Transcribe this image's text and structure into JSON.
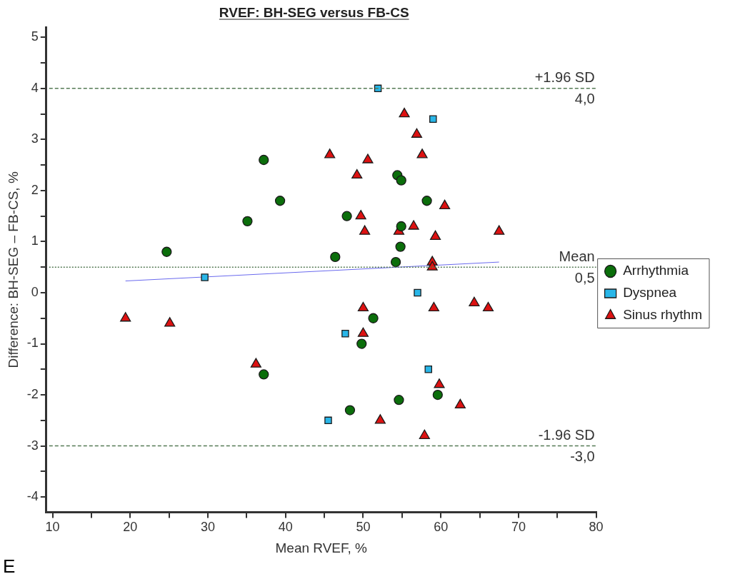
{
  "chart_data": {
    "type": "scatter",
    "title": "RVEF: BH-SEG versus FB-CS",
    "xlabel": "Mean RVEF, %",
    "ylabel": "Difference: BH-SEG – FB-CS, %",
    "xlim": [
      9.2,
      80
    ],
    "ylim": [
      -4.3,
      5.2
    ],
    "xticks": [
      10,
      {
        "value": 15,
        "label": null
      },
      20,
      {
        "value": 25,
        "label": null
      },
      30,
      {
        "value": 35,
        "label": null
      },
      40,
      {
        "value": 45,
        "label": null
      },
      50,
      {
        "value": 55,
        "label": null
      },
      60,
      {
        "value": 65,
        "label": null
      },
      70,
      {
        "value": 75,
        "label": null
      },
      80
    ],
    "yticks": [
      -4,
      {
        "value": -3.5,
        "label": null
      },
      -3,
      {
        "value": -2.5,
        "label": null
      },
      -2,
      {
        "value": -1.5,
        "label": null
      },
      -1,
      {
        "value": -0.5,
        "label": null
      },
      0,
      {
        "value": 0.5,
        "label": null
      },
      1,
      {
        "value": 1.5,
        "label": null
      },
      2,
      {
        "value": 2.5,
        "label": null
      },
      3,
      {
        "value": 3.5,
        "label": null
      },
      4,
      {
        "value": 4.5,
        "label": null
      },
      5
    ],
    "grid": false,
    "legend": "right",
    "series": [
      {
        "name": "Arrhythmia",
        "color": "#0b6e0b",
        "marker": "circle",
        "x": [
          24.7,
          37.2,
          39.3,
          35.1,
          47.9,
          46.4,
          54.4,
          54.9,
          58.2,
          54.9,
          54.8,
          54.2,
          51.3,
          49.8,
          37.2,
          48.3,
          54.6,
          59.6
        ],
        "values": [
          0.8,
          2.6,
          1.8,
          1.4,
          1.5,
          0.7,
          2.3,
          2.2,
          1.8,
          1.3,
          0.9,
          0.6,
          -0.5,
          -1.0,
          -1.6,
          -2.3,
          -2.1,
          -2.0
        ]
      },
      {
        "name": "Dyspnea",
        "color": "#29b6e8",
        "marker": "square",
        "x": [
          51.9,
          59.0,
          29.6,
          57.0,
          47.7,
          58.4,
          45.5
        ],
        "values": [
          4.0,
          3.4,
          0.3,
          0.0,
          -0.8,
          -1.5,
          -2.5
        ]
      },
      {
        "name": "Sinus rhythm",
        "color": "#dd1111",
        "marker": "triangle",
        "x": [
          55.3,
          56.9,
          45.7,
          57.6,
          50.6,
          49.2,
          60.5,
          49.7,
          56.5,
          54.6,
          50.2,
          59.3,
          67.5,
          58.9,
          58.9,
          19.4,
          25.1,
          50.0,
          59.1,
          64.3,
          66.1,
          50.0,
          36.2,
          59.8,
          62.5,
          52.2,
          57.9
        ],
        "values": [
          3.5,
          3.1,
          2.7,
          2.7,
          2.6,
          2.3,
          1.7,
          1.5,
          1.3,
          1.2,
          1.2,
          1.1,
          1.2,
          0.6,
          0.5,
          -0.5,
          -0.6,
          -0.3,
          -0.3,
          -0.2,
          -0.3,
          -0.8,
          -1.4,
          -1.8,
          -2.2,
          -2.5,
          -2.8
        ]
      },
      {
        "type": "line",
        "color": "#6a6aee",
        "marker": "none",
        "x": [
          19.4,
          67.5
        ],
        "values": [
          0.23,
          0.6
        ]
      }
    ],
    "ref_lines": [
      {
        "axis": "y",
        "value": 4.0,
        "label": "+1.96 SD",
        "color": "#557a55",
        "line_style": "dashed"
      },
      {
        "axis": "y",
        "value": 0.5,
        "label": "Mean",
        "color": "#557a55",
        "line_style": "dotted"
      },
      {
        "axis": "y",
        "value": -3.0,
        "label": "-1.96 SD",
        "color": "#557a55",
        "line_style": "dashed"
      }
    ],
    "annotations": [
      {
        "text": "4,0",
        "y": 4.0
      },
      {
        "text": "0,5",
        "y": 0.5
      },
      {
        "text": "-3,0",
        "y": -3.0
      },
      "E"
    ]
  }
}
